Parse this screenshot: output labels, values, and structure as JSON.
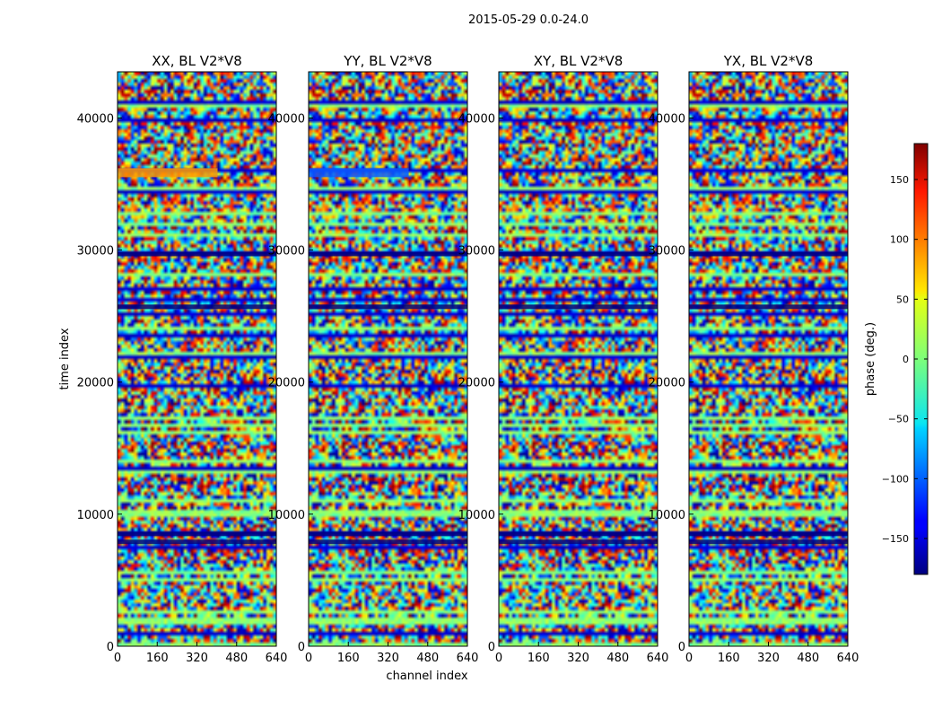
{
  "chart_data": {
    "type": "heatmap",
    "title": "2015-05-29 0.0-24.0",
    "xlabel": "channel index",
    "ylabel": "time index",
    "xlim": [
      0,
      640
    ],
    "ylim": [
      0,
      43500
    ],
    "xticks": [
      "0",
      "160",
      "320",
      "480",
      "640"
    ],
    "yticks": [
      "0",
      "10000",
      "20000",
      "30000",
      "40000"
    ],
    "panels": [
      {
        "title": "XX, BL V2*V8"
      },
      {
        "title": "YY, BL V2*V8"
      },
      {
        "title": "XY, BL V2*V8"
      },
      {
        "title": "YX, BL V2*V8"
      }
    ],
    "colorbar": {
      "label": "phase (deg.)",
      "range": [
        -180,
        180
      ],
      "colormap": "jet",
      "ticks": [
        "150",
        "100",
        "50",
        "0",
        "−50",
        "−100",
        "−150"
      ]
    }
  }
}
